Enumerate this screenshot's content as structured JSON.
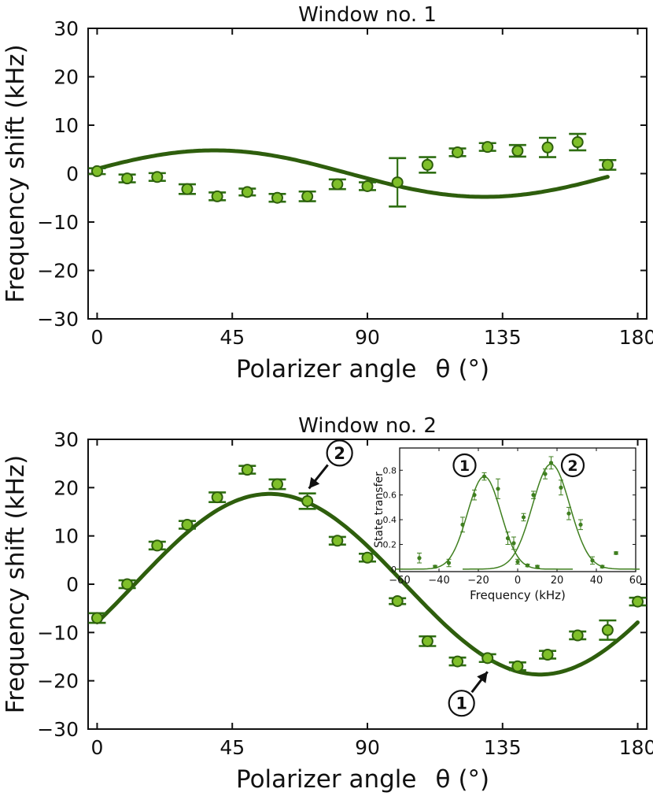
{
  "colors": {
    "curve": "#2e5e0d",
    "marker_fill": "#7fbf2a",
    "marker_edge": "#2e5e0d",
    "errorbar": "#2e6e12",
    "inset": "#3f7f1f",
    "axes": "#111111"
  },
  "chart_data": [
    {
      "type": "scatter",
      "title": "Window no. 1",
      "xlabel_main": "Polarizer angle",
      "xlabel_symbol": "θ",
      "xlabel_unit": "(°)",
      "ylabel": "Frequency shift (kHz)",
      "xlim": [
        -3,
        183
      ],
      "ylim": [
        -30,
        30
      ],
      "xticks": [
        0,
        45,
        90,
        135,
        180
      ],
      "yticks": [
        30,
        20,
        10,
        0,
        -10,
        -20,
        -30
      ],
      "ytick_labels": [
        "30",
        "20",
        "10",
        "0",
        "−10",
        "−20",
        "−30"
      ],
      "series": [
        {
          "name": "data",
          "x": [
            0,
            10,
            20,
            30,
            40,
            50,
            60,
            70,
            80,
            90,
            100,
            110,
            120,
            130,
            140,
            150,
            160,
            170
          ],
          "y": [
            0.5,
            -1.0,
            -0.7,
            -3.2,
            -4.7,
            -3.8,
            -5.0,
            -4.7,
            -2.2,
            -2.6,
            -1.8,
            1.8,
            4.4,
            5.5,
            4.7,
            5.4,
            6.5,
            1.8
          ],
          "err": [
            0.6,
            0.8,
            0.8,
            1.0,
            0.8,
            0.7,
            0.8,
            1.0,
            1.0,
            0.8,
            5.0,
            1.6,
            0.8,
            0.8,
            1.2,
            2.0,
            1.7,
            1.0
          ]
        },
        {
          "name": "fit",
          "amplitude": 4.8,
          "period_deg": 180,
          "phase_deg": -6,
          "offset": 0,
          "x_range": [
            0,
            170
          ]
        }
      ]
    },
    {
      "type": "scatter",
      "title": "Window no. 2",
      "xlabel_main": "Polarizer angle",
      "xlabel_symbol": "θ",
      "xlabel_unit": "(°)",
      "ylabel": "Frequency shift (kHz)",
      "xlim": [
        -3,
        183
      ],
      "ylim": [
        -30,
        30
      ],
      "xticks": [
        0,
        45,
        90,
        135,
        180
      ],
      "yticks": [
        30,
        20,
        10,
        0,
        -10,
        -20,
        -30
      ],
      "ytick_labels": [
        "30",
        "20",
        "10",
        "0",
        "−10",
        "−20",
        "−30"
      ],
      "series": [
        {
          "name": "data",
          "x": [
            0,
            10,
            20,
            30,
            40,
            50,
            60,
            70,
            80,
            90,
            100,
            110,
            120,
            130,
            140,
            150,
            160,
            170,
            180
          ],
          "y": [
            -7.0,
            0.0,
            8.0,
            12.3,
            18.0,
            23.7,
            20.7,
            17.2,
            9.0,
            5.5,
            -3.5,
            -11.8,
            -16.0,
            -15.3,
            -17.0,
            -14.6,
            -10.6,
            -9.5,
            -3.6
          ],
          "err": [
            1.0,
            0.8,
            0.8,
            0.8,
            1.0,
            0.8,
            1.0,
            1.6,
            0.8,
            0.8,
            0.6,
            1.0,
            0.8,
            0.8,
            0.8,
            0.8,
            0.8,
            2.0,
            0.8
          ]
        },
        {
          "name": "fit",
          "amplitude": 18.7,
          "period_deg": 180,
          "phase_deg": 12.5,
          "offset": 0,
          "x_range": [
            0,
            180
          ]
        }
      ],
      "annotations": [
        {
          "label": "2",
          "points_to": {
            "x": 70,
            "y": 19.5
          }
        },
        {
          "label": "1",
          "points_to": {
            "x": 130,
            "y": -17.8
          }
        }
      ]
    },
    {
      "type": "scatter",
      "title": "",
      "xlabel": "Frequency (kHz)",
      "ylabel": "State transfer",
      "xlim": [
        -60,
        60
      ],
      "ylim": [
        -0.02,
        0.98
      ],
      "xticks": [
        -60,
        -40,
        -20,
        0,
        20,
        40,
        60
      ],
      "xtick_labels": [
        "−60",
        "−40",
        "−20",
        "0",
        "20",
        "40",
        "60"
      ],
      "yticks": [
        0,
        0.2,
        0.4,
        0.6,
        0.8
      ],
      "ytick_labels": [
        "0",
        "0.2",
        "0.4",
        "0.6",
        "0.8"
      ],
      "series": [
        {
          "name": "1",
          "x": [
            -50,
            -42,
            -35,
            -28,
            -22,
            -17,
            -10,
            -5,
            0,
            5,
            10
          ],
          "y": [
            0.09,
            0.02,
            0.05,
            0.36,
            0.6,
            0.75,
            0.65,
            0.25,
            0.06,
            0.03,
            0.02
          ],
          "err": [
            0.04,
            0.01,
            0.03,
            0.06,
            0.04,
            0.03,
            0.08,
            0.05,
            0.02,
            0.01,
            0.01
          ],
          "fit": {
            "amplitude": 0.75,
            "center": -17,
            "sigma": 8.5
          }
        },
        {
          "name": "2",
          "x": [
            -2,
            3,
            8,
            14,
            17,
            22,
            26,
            32,
            38,
            43,
            50
          ],
          "y": [
            0.21,
            0.42,
            0.6,
            0.77,
            0.86,
            0.66,
            0.45,
            0.36,
            0.07,
            0.02,
            0.13
          ],
          "err": [
            0.05,
            0.03,
            0.03,
            0.04,
            0.05,
            0.06,
            0.05,
            0.04,
            0.03,
            0.01,
            0.01
          ],
          "fit": {
            "amplitude": 0.85,
            "center": 17,
            "sigma": 9.5
          }
        }
      ],
      "labels": [
        {
          "text": "1",
          "x": -27,
          "y": 0.84
        },
        {
          "text": "2",
          "x": 28,
          "y": 0.84
        }
      ]
    }
  ]
}
